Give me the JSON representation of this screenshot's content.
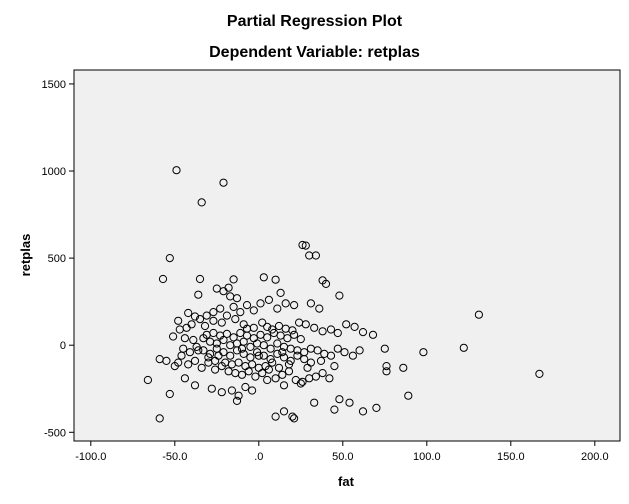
{
  "chart_data": {
    "type": "scatter",
    "title": "Partial Regression Plot",
    "subtitle": "Dependent Variable: retplas",
    "xlabel": "fat",
    "ylabel": "retplas",
    "xlim": [
      -110,
      215
    ],
    "ylim": [
      -550,
      1580
    ],
    "x_ticks": [
      -100,
      -50,
      0,
      50,
      100,
      150,
      200
    ],
    "x_tick_labels": [
      "-100.0",
      "-50.0",
      ".0",
      "50.0",
      "100.0",
      "150.0",
      "200.0"
    ],
    "y_ticks": [
      -500,
      0,
      500,
      1000,
      1500
    ],
    "y_tick_labels": [
      "-500",
      "0",
      "500",
      "1000",
      "1500"
    ],
    "grid": false,
    "legend": "none",
    "colors": {
      "plot_background": "#f0f0f0",
      "marker": "#000000"
    },
    "marker": "open-circle",
    "points": [
      [
        -49,
        1005
      ],
      [
        -21,
        933
      ],
      [
        -34,
        820
      ],
      [
        -53,
        500
      ],
      [
        -57,
        380
      ],
      [
        -35,
        380
      ],
      [
        -15,
        378
      ],
      [
        3,
        390
      ],
      [
        10,
        376
      ],
      [
        -25,
        325
      ],
      [
        -18,
        330
      ],
      [
        -21,
        310
      ],
      [
        -17,
        280
      ],
      [
        -13,
        270
      ],
      [
        -36,
        290
      ],
      [
        13,
        300
      ],
      [
        26,
        575
      ],
      [
        28,
        572
      ],
      [
        34,
        515
      ],
      [
        30,
        515
      ],
      [
        38,
        372
      ],
      [
        40,
        352
      ],
      [
        48,
        285
      ],
      [
        -42,
        185
      ],
      [
        -38,
        165
      ],
      [
        -48,
        140
      ],
      [
        -40,
        120
      ],
      [
        -32,
        110
      ],
      [
        -27,
        140
      ],
      [
        -22,
        130
      ],
      [
        -14,
        150
      ],
      [
        -9,
        120
      ],
      [
        -7,
        95
      ],
      [
        -3,
        100
      ],
      [
        2,
        130
      ],
      [
        5,
        105
      ],
      [
        8,
        90
      ],
      [
        12,
        110
      ],
      [
        16,
        95
      ],
      [
        20,
        85
      ],
      [
        24,
        130
      ],
      [
        28,
        120
      ],
      [
        33,
        100
      ],
      [
        38,
        80
      ],
      [
        43,
        90
      ],
      [
        47,
        70
      ],
      [
        52,
        120
      ],
      [
        57,
        105
      ],
      [
        62,
        75
      ],
      [
        68,
        60
      ],
      [
        75,
        -20
      ],
      [
        -51,
        50
      ],
      [
        -44,
        40
      ],
      [
        -39,
        30
      ],
      [
        -33,
        40
      ],
      [
        -29,
        20
      ],
      [
        -25,
        10
      ],
      [
        -21,
        30
      ],
      [
        -17,
        0
      ],
      [
        -13,
        10
      ],
      [
        -9,
        20
      ],
      [
        -5,
        -10
      ],
      [
        -1,
        10
      ],
      [
        3,
        0
      ],
      [
        7,
        -20
      ],
      [
        11,
        10
      ],
      [
        15,
        -10
      ],
      [
        19,
        -20
      ],
      [
        23,
        -30
      ],
      [
        27,
        -40
      ],
      [
        31,
        -20
      ],
      [
        35,
        -30
      ],
      [
        39,
        -50
      ],
      [
        43,
        -60
      ],
      [
        47,
        -20
      ],
      [
        51,
        -40
      ],
      [
        56,
        -60
      ],
      [
        60,
        -30
      ],
      [
        -59,
        -80
      ],
      [
        -55,
        -90
      ],
      [
        -50,
        -120
      ],
      [
        -46,
        -60
      ],
      [
        -42,
        -110
      ],
      [
        -38,
        -90
      ],
      [
        -34,
        -130
      ],
      [
        -30,
        -100
      ],
      [
        -26,
        -140
      ],
      [
        -22,
        -120
      ],
      [
        -18,
        -150
      ],
      [
        -14,
        -160
      ],
      [
        -10,
        -170
      ],
      [
        -6,
        -150
      ],
      [
        -2,
        -180
      ],
      [
        2,
        -160
      ],
      [
        6,
        -140
      ],
      [
        10,
        -190
      ],
      [
        14,
        -170
      ],
      [
        18,
        -150
      ],
      [
        22,
        -200
      ],
      [
        26,
        -210
      ],
      [
        30,
        -190
      ],
      [
        34,
        -180
      ],
      [
        38,
        -160
      ],
      [
        42,
        -190
      ],
      [
        -66,
        -200
      ],
      [
        -53,
        -280
      ],
      [
        -44,
        -190
      ],
      [
        -38,
        -230
      ],
      [
        -28,
        -250
      ],
      [
        -22,
        -270
      ],
      [
        -16,
        -260
      ],
      [
        -12,
        -290
      ],
      [
        -8,
        -240
      ],
      [
        -4,
        -260
      ],
      [
        5,
        -200
      ],
      [
        15,
        -230
      ],
      [
        25,
        -220
      ],
      [
        -59,
        -420
      ],
      [
        -13,
        -320
      ],
      [
        10,
        -410
      ],
      [
        15,
        -380
      ],
      [
        20,
        -410
      ],
      [
        21,
        -420
      ],
      [
        33,
        -330
      ],
      [
        45,
        -370
      ],
      [
        48,
        -310
      ],
      [
        54,
        -330
      ],
      [
        62,
        -380
      ],
      [
        70,
        -360
      ],
      [
        76,
        -120
      ],
      [
        76,
        -150
      ],
      [
        86,
        -130
      ],
      [
        89,
        -290
      ],
      [
        98,
        -40
      ],
      [
        122,
        -15
      ],
      [
        131,
        175
      ],
      [
        167,
        -165
      ],
      [
        -31,
        60
      ],
      [
        -27,
        70
      ],
      [
        -23,
        55
      ],
      [
        -19,
        65
      ],
      [
        -15,
        45
      ],
      [
        -11,
        70
      ],
      [
        -7,
        55
      ],
      [
        -3,
        40
      ],
      [
        1,
        60
      ],
      [
        5,
        45
      ],
      [
        9,
        70
      ],
      [
        13,
        55
      ],
      [
        17,
        40
      ],
      [
        21,
        60
      ],
      [
        25,
        35
      ],
      [
        -45,
        -20
      ],
      [
        -41,
        -40
      ],
      [
        -37,
        -10
      ],
      [
        -33,
        -30
      ],
      [
        -29,
        -50
      ],
      [
        -25,
        -20
      ],
      [
        -21,
        -40
      ],
      [
        -17,
        -60
      ],
      [
        -13,
        -30
      ],
      [
        -9,
        -50
      ],
      [
        -5,
        -70
      ],
      [
        -1,
        -40
      ],
      [
        3,
        -60
      ],
      [
        7,
        -80
      ],
      [
        11,
        -50
      ],
      [
        15,
        -70
      ],
      [
        19,
        -90
      ],
      [
        23,
        -60
      ],
      [
        27,
        -80
      ],
      [
        31,
        -100
      ],
      [
        -47,
        90
      ],
      [
        -43,
        100
      ],
      [
        -35,
        150
      ],
      [
        -31,
        170
      ],
      [
        -27,
        190
      ],
      [
        -23,
        210
      ],
      [
        -19,
        170
      ],
      [
        -15,
        220
      ],
      [
        -11,
        190
      ],
      [
        -7,
        230
      ],
      [
        -3,
        200
      ],
      [
        1,
        240
      ],
      [
        6,
        260
      ],
      [
        11,
        210
      ],
      [
        16,
        240
      ],
      [
        21,
        230
      ],
      [
        31,
        240
      ],
      [
        36,
        210
      ],
      [
        -30,
        -70
      ],
      [
        -26,
        -90
      ],
      [
        -20,
        -100
      ],
      [
        -16,
        -110
      ],
      [
        -12,
        -100
      ],
      [
        -8,
        -120
      ],
      [
        -4,
        -110
      ],
      [
        0,
        -130
      ],
      [
        4,
        -120
      ],
      [
        8,
        -100
      ],
      [
        12,
        -130
      ],
      [
        -48,
        -100
      ],
      [
        -24,
        -60
      ],
      [
        0,
        -60
      ],
      [
        18,
        -110
      ],
      [
        29,
        -130
      ],
      [
        37,
        -90
      ],
      [
        45,
        -120
      ],
      [
        -36,
        -30
      ],
      [
        -10,
        -20
      ],
      [
        14,
        -40
      ]
    ]
  }
}
